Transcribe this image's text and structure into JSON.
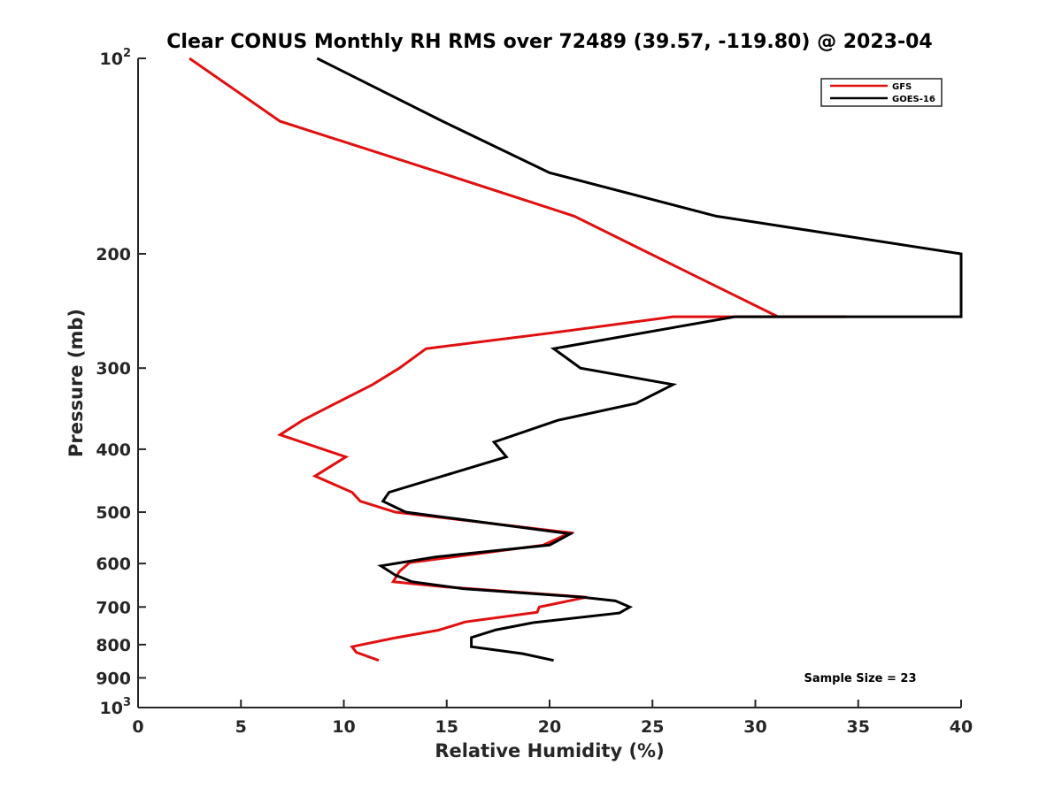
{
  "chart_data": {
    "type": "line",
    "title": "Clear CONUS Monthly RH RMS over 72489 (39.57, -119.80) @ 2023-04",
    "xlabel": "Relative Humidity (%)",
    "ylabel": "Pressure (mb)",
    "xlim": [
      0,
      40
    ],
    "ylim": [
      100,
      1000
    ],
    "yscale": "log",
    "y_reversed": true,
    "xticks": [
      0,
      5,
      10,
      15,
      20,
      25,
      30,
      35,
      40
    ],
    "xtick_labels": [
      "0",
      "5",
      "10",
      "15",
      "20",
      "25",
      "30",
      "35",
      "40"
    ],
    "yticks": [
      100,
      200,
      300,
      400,
      500,
      600,
      700,
      800,
      900,
      1000
    ],
    "ytick_labels": [
      {
        "base": "10",
        "exp": "2"
      },
      {
        "base": "200",
        "exp": ""
      },
      {
        "base": "300",
        "exp": ""
      },
      {
        "base": "400",
        "exp": ""
      },
      {
        "base": "500",
        "exp": ""
      },
      {
        "base": "600",
        "exp": ""
      },
      {
        "base": "700",
        "exp": ""
      },
      {
        "base": "800",
        "exp": ""
      },
      {
        "base": "900",
        "exp": ""
      },
      {
        "base": "10",
        "exp": "3"
      }
    ],
    "legend_position": "top-right",
    "annotation": "Sample Size = 23",
    "series": [
      {
        "name": "GFS",
        "color": "#e01010",
        "points": [
          [
            2.5,
            100
          ],
          [
            6.9,
            125
          ],
          [
            14.7,
            150
          ],
          [
            21.2,
            175
          ],
          [
            24.9,
            200
          ],
          [
            31.1,
            250
          ],
          [
            34.4,
            250
          ],
          [
            26.0,
            250
          ],
          [
            20.0,
            265
          ],
          [
            14.0,
            280
          ],
          [
            12.7,
            300
          ],
          [
            11.4,
            318
          ],
          [
            9.6,
            340
          ],
          [
            8.0,
            361
          ],
          [
            6.9,
            380
          ],
          [
            10.1,
            411
          ],
          [
            8.6,
            440
          ],
          [
            10.4,
            466
          ],
          [
            10.8,
            481
          ],
          [
            12.5,
            500
          ],
          [
            21.0,
            538
          ],
          [
            19.7,
            562
          ],
          [
            13.2,
            598
          ],
          [
            12.7,
            617
          ],
          [
            12.4,
            640
          ],
          [
            15.0,
            652
          ],
          [
            21.8,
            676
          ],
          [
            19.5,
            700
          ],
          [
            19.4,
            713
          ],
          [
            15.9,
            738
          ],
          [
            14.6,
            760
          ],
          [
            12.4,
            782
          ],
          [
            10.4,
            806
          ],
          [
            10.6,
            822
          ],
          [
            11.7,
            846
          ]
        ]
      },
      {
        "name": "GOES-16",
        "color": "#000000",
        "points": [
          [
            8.7,
            100
          ],
          [
            14.8,
            125
          ],
          [
            20.0,
            150
          ],
          [
            28.1,
            175
          ],
          [
            40.0,
            200
          ],
          [
            40.0,
            250
          ],
          [
            29.0,
            250
          ],
          [
            20.2,
            280
          ],
          [
            21.5,
            300
          ],
          [
            26.0,
            318
          ],
          [
            24.2,
            340
          ],
          [
            20.4,
            361
          ],
          [
            17.3,
            390
          ],
          [
            17.9,
            411
          ],
          [
            14.8,
            440
          ],
          [
            12.2,
            466
          ],
          [
            11.9,
            481
          ],
          [
            13.0,
            500
          ],
          [
            21.0,
            540
          ],
          [
            20.0,
            562
          ],
          [
            14.5,
            586
          ],
          [
            11.8,
            605
          ],
          [
            12.5,
            625
          ],
          [
            13.3,
            640
          ],
          [
            15.8,
            656
          ],
          [
            21.6,
            676
          ],
          [
            23.2,
            685
          ],
          [
            23.9,
            700
          ],
          [
            23.4,
            715
          ],
          [
            19.2,
            740
          ],
          [
            17.4,
            759
          ],
          [
            16.2,
            780
          ],
          [
            16.2,
            806
          ],
          [
            18.7,
            826
          ],
          [
            20.2,
            846
          ]
        ]
      }
    ]
  }
}
